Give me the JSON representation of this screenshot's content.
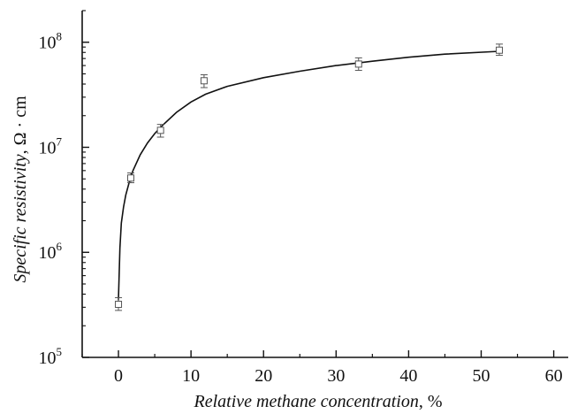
{
  "chart_data": {
    "type": "scatter",
    "xlabel": {
      "italic": "Relative methane concentration",
      "suffix": ", %"
    },
    "ylabel": {
      "italic": "Specific resistivity",
      "suffix": ", Ω · cm"
    },
    "xlim": [
      -5,
      62
    ],
    "ylim": [
      100000,
      200000000
    ],
    "y_scale": "log",
    "x_ticks": [
      0,
      10,
      20,
      30,
      40,
      50,
      60
    ],
    "x_tick_labels": [
      "0",
      "10",
      "20",
      "30",
      "40",
      "50",
      "60"
    ],
    "y_ticks": [
      100000,
      1000000,
      10000000,
      100000000
    ],
    "y_tick_labels": [
      {
        "base": "10",
        "exp": "5"
      },
      {
        "base": "10",
        "exp": "6"
      },
      {
        "base": "10",
        "exp": "7"
      },
      {
        "base": "10",
        "exp": "8"
      }
    ],
    "grid": false,
    "series": [
      {
        "marker": "open-square",
        "points": [
          {
            "x": 0,
            "y": 320000,
            "err_low": 280000,
            "err_high": 370000
          },
          {
            "x": 1.7,
            "y": 5100000,
            "err_low": 4600000,
            "err_high": 5700000
          },
          {
            "x": 5.8,
            "y": 14500000,
            "err_low": 12500000,
            "err_high": 16500000
          },
          {
            "x": 11.8,
            "y": 43000000,
            "err_low": 37000000,
            "err_high": 49000000
          },
          {
            "x": 33.1,
            "y": 62000000,
            "err_low": 54000000,
            "err_high": 71000000
          },
          {
            "x": 52.5,
            "y": 84000000,
            "err_low": 75000000,
            "err_high": 96000000
          }
        ]
      },
      {
        "style": "line",
        "points": [
          {
            "x": 0,
            "y": 350000
          },
          {
            "x": 0.2,
            "y": 1100000
          },
          {
            "x": 0.4,
            "y": 1900000
          },
          {
            "x": 0.7,
            "y": 2700000
          },
          {
            "x": 1.0,
            "y": 3500000
          },
          {
            "x": 1.5,
            "y": 4700000
          },
          {
            "x": 2.0,
            "y": 6000000
          },
          {
            "x": 3.0,
            "y": 8500000
          },
          {
            "x": 4.0,
            "y": 11000000
          },
          {
            "x": 5.0,
            "y": 13500000
          },
          {
            "x": 6.0,
            "y": 16000000
          },
          {
            "x": 8.0,
            "y": 21500000
          },
          {
            "x": 10.0,
            "y": 27000000
          },
          {
            "x": 12.0,
            "y": 32000000
          },
          {
            "x": 15.0,
            "y": 38000000
          },
          {
            "x": 20.0,
            "y": 46000000
          },
          {
            "x": 25.0,
            "y": 53000000
          },
          {
            "x": 30.0,
            "y": 60000000
          },
          {
            "x": 35.0,
            "y": 66000000
          },
          {
            "x": 40.0,
            "y": 72000000
          },
          {
            "x": 45.0,
            "y": 77000000
          },
          {
            "x": 52.5,
            "y": 82000000
          }
        ]
      }
    ]
  }
}
